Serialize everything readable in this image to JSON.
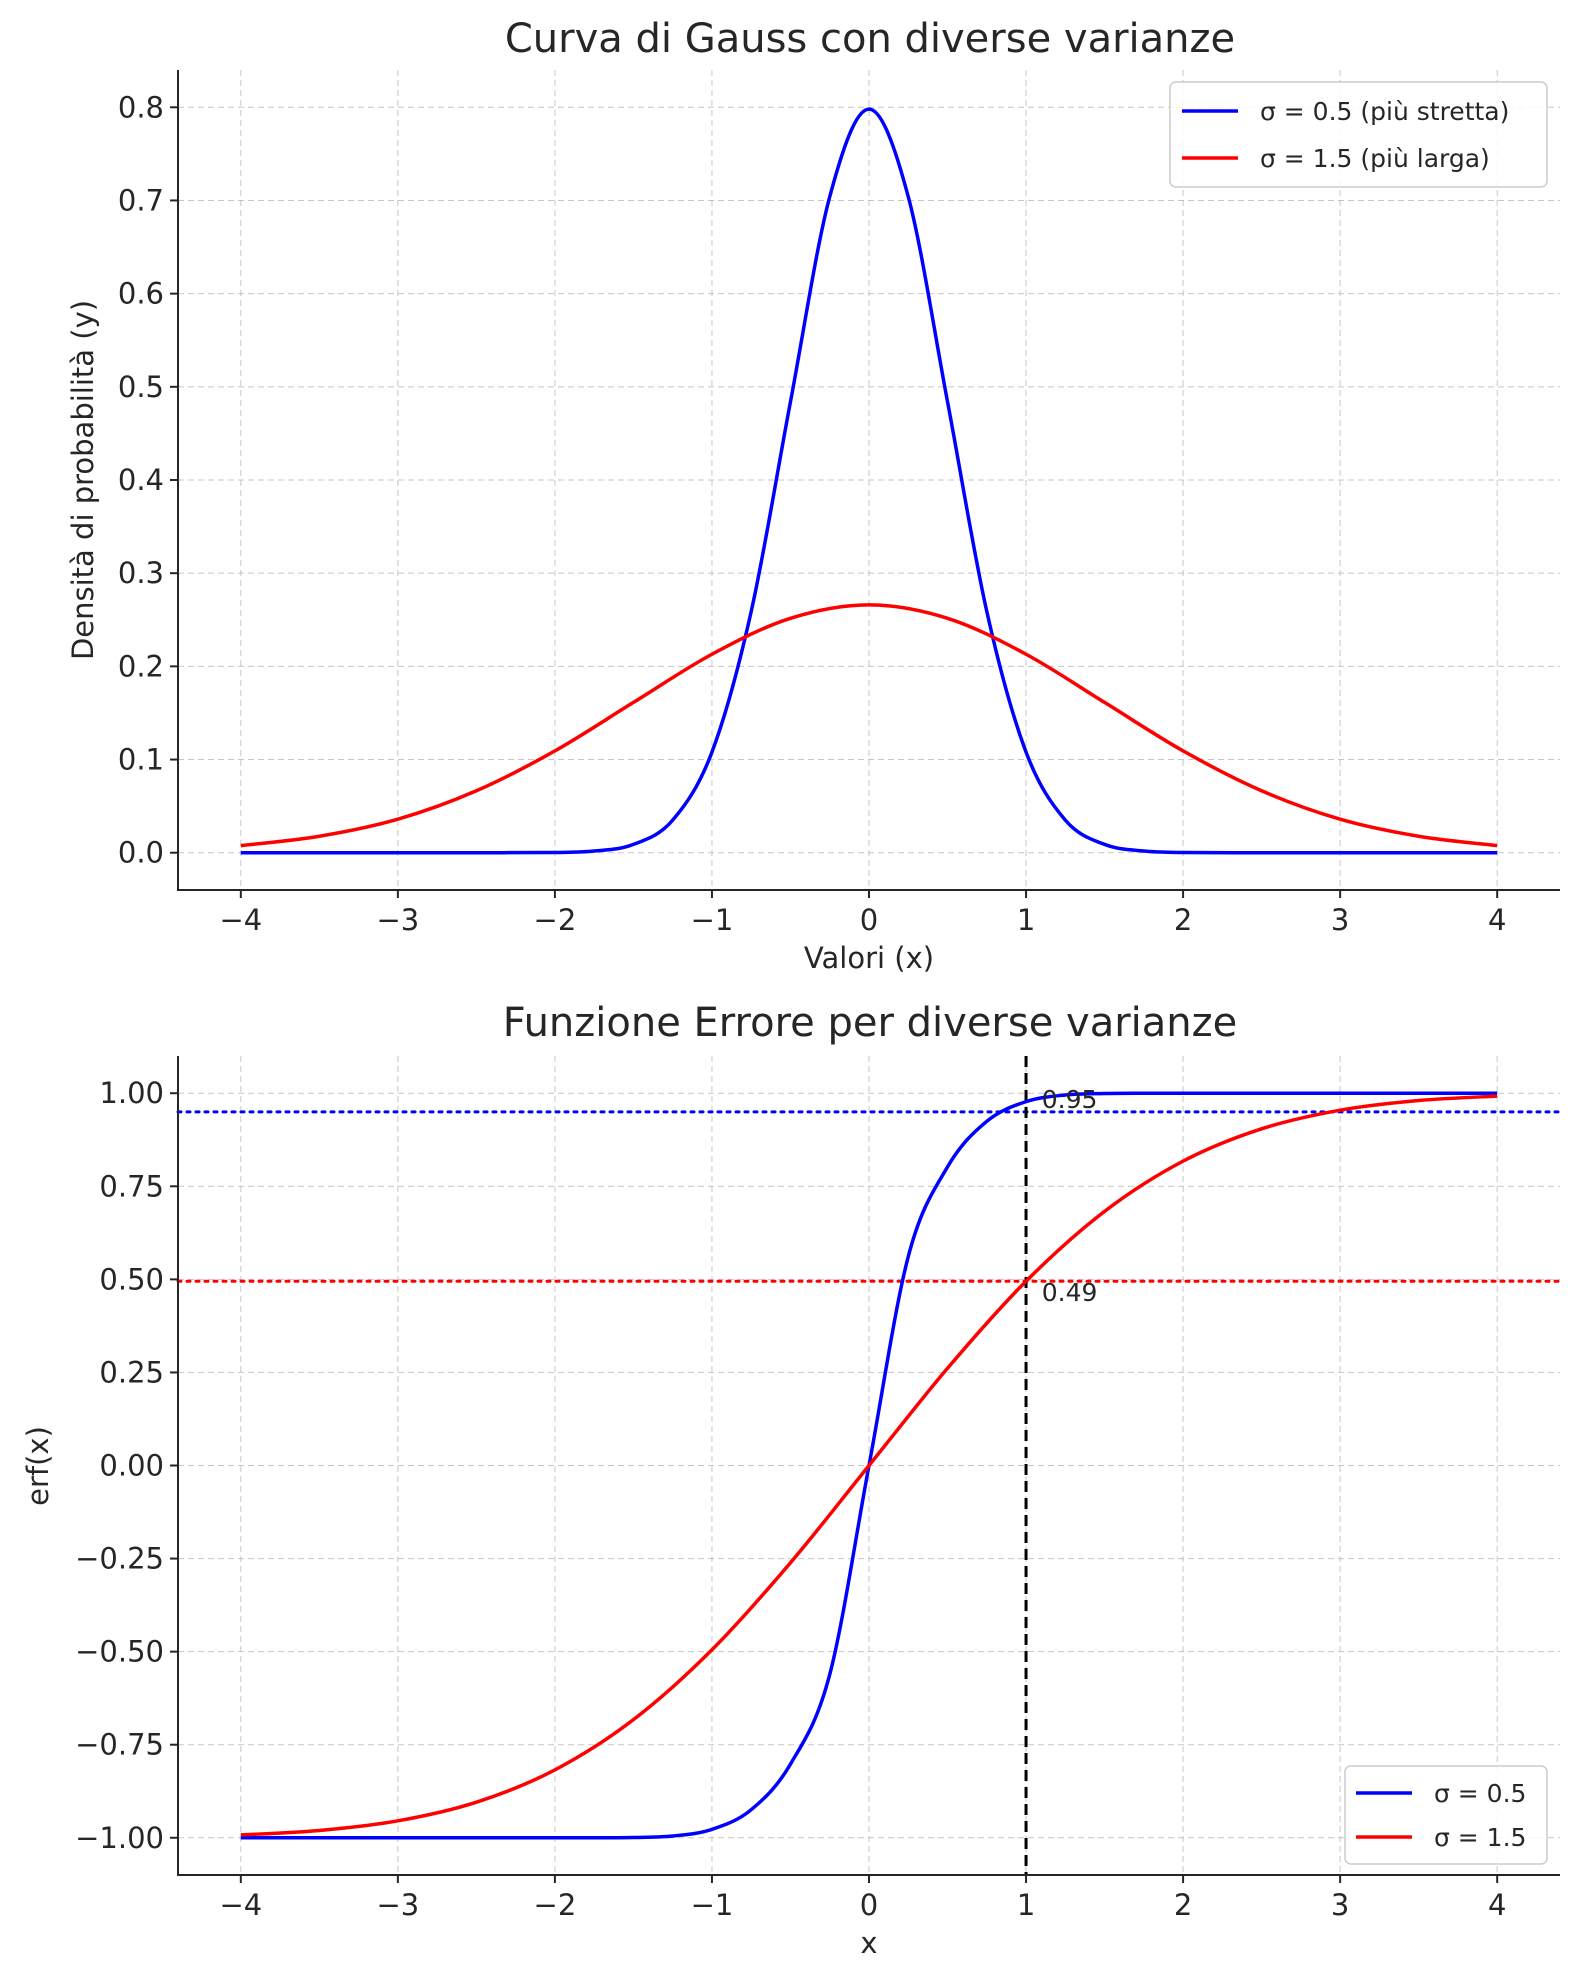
{
  "chart_data": [
    {
      "type": "line",
      "title": "Curva di Gauss con diverse varianze",
      "xlabel": "Valori (x)",
      "ylabel": "Densità di probabilità (y)",
      "xlim": [
        -4.4,
        4.4
      ],
      "ylim": [
        -0.04,
        0.84
      ],
      "xticks": [
        -4,
        -3,
        -2,
        -1,
        0,
        1,
        2,
        3,
        4
      ],
      "xtick_labels": [
        "−4",
        "−3",
        "−2",
        "−1",
        "0",
        "1",
        "2",
        "3",
        "4"
      ],
      "yticks": [
        0.0,
        0.1,
        0.2,
        0.3,
        0.4,
        0.5,
        0.6,
        0.7,
        0.8
      ],
      "ytick_labels": [
        "0.0",
        "0.1",
        "0.2",
        "0.3",
        "0.4",
        "0.5",
        "0.6",
        "0.7",
        "0.8"
      ],
      "grid": true,
      "legend_position": "top-right",
      "series": [
        {
          "name": "σ = 0.5 (più stretta)",
          "color": "#0000ff",
          "x": [
            -4,
            -3.5,
            -3,
            -2.5,
            -2,
            -1.75,
            -1.5,
            -1.25,
            -1,
            -0.75,
            -0.5,
            -0.25,
            0,
            0.25,
            0.5,
            0.75,
            1,
            1.25,
            1.5,
            1.75,
            2,
            2.5,
            3,
            3.5,
            4
          ],
          "y": [
            0.0,
            0.0,
            0.0,
            0.0,
            0.0003,
            0.0018,
            0.0089,
            0.035,
            0.108,
            0.259,
            0.484,
            0.704,
            0.798,
            0.704,
            0.484,
            0.259,
            0.108,
            0.035,
            0.0089,
            0.0018,
            0.0003,
            0.0,
            0.0,
            0.0,
            0.0
          ]
        },
        {
          "name": "σ = 1.5 (più larga)",
          "color": "#ff0000",
          "x": [
            -4,
            -3.5,
            -3,
            -2.5,
            -2,
            -1.5,
            -1,
            -0.5,
            0,
            0.5,
            1,
            1.5,
            2,
            2.5,
            3,
            3.5,
            4
          ],
          "y": [
            0.0076,
            0.0177,
            0.036,
            0.0665,
            0.1093,
            0.1613,
            0.213,
            0.2516,
            0.266,
            0.2516,
            0.213,
            0.1613,
            0.1093,
            0.0665,
            0.036,
            0.0177,
            0.0076
          ]
        }
      ]
    },
    {
      "type": "line",
      "title": "Funzione Errore per diverse varianze",
      "xlabel": "x",
      "ylabel": "erf(x)",
      "xlim": [
        -4.4,
        4.4
      ],
      "ylim": [
        -1.1,
        1.1
      ],
      "xticks": [
        -4,
        -3,
        -2,
        -1,
        0,
        1,
        2,
        3,
        4
      ],
      "xtick_labels": [
        "−4",
        "−3",
        "−2",
        "−1",
        "0",
        "1",
        "2",
        "3",
        "4"
      ],
      "yticks": [
        -1.0,
        -0.75,
        -0.5,
        -0.25,
        0.0,
        0.25,
        0.5,
        0.75,
        1.0
      ],
      "ytick_labels": [
        "−1.00",
        "−0.75",
        "−0.50",
        "−0.25",
        "0.00",
        "0.25",
        "0.50",
        "0.75",
        "1.00"
      ],
      "grid": true,
      "legend_position": "bottom-right",
      "series": [
        {
          "name": "σ = 0.5",
          "color": "#0000ff",
          "x": [
            -4,
            -3.5,
            -3,
            -2.5,
            -2,
            -1.75,
            -1.5,
            -1.25,
            -1,
            -0.75,
            -0.5,
            -0.25,
            0,
            0.25,
            0.5,
            0.75,
            1,
            1.25,
            1.5,
            1.75,
            2,
            2.5,
            3,
            3.5,
            4
          ],
          "y": [
            -1.0,
            -1.0,
            -1.0,
            -1.0,
            -1.0,
            -1.0,
            -0.9993,
            -0.9953,
            -0.9774,
            -0.9246,
            -0.8021,
            -0.5614,
            0.0,
            0.5614,
            0.8021,
            0.9246,
            0.9774,
            0.9953,
            0.9993,
            1.0,
            1.0,
            1.0,
            1.0,
            1.0,
            1.0
          ]
        },
        {
          "name": "σ = 1.5",
          "color": "#ff0000",
          "x": [
            -4,
            -3.5,
            -3,
            -2.5,
            -2,
            -1.5,
            -1,
            -0.5,
            0,
            0.5,
            1,
            1.5,
            2,
            2.5,
            3,
            3.5,
            4
          ],
          "y": [
            -0.9923,
            -0.9804,
            -0.9545,
            -0.9044,
            -0.8176,
            -0.6827,
            -0.495,
            -0.2611,
            0.0,
            0.2611,
            0.495,
            0.6827,
            0.8176,
            0.9044,
            0.9545,
            0.9804,
            0.9923
          ]
        }
      ],
      "reference_lines": {
        "vertical": {
          "x": 1,
          "color": "#000000",
          "style": "dashed"
        },
        "horizontal": [
          {
            "y": 0.95,
            "color": "#0000ff",
            "style": "dotted"
          },
          {
            "y": 0.495,
            "color": "#ff0000",
            "style": "dotted"
          }
        ]
      },
      "annotations": [
        {
          "text": "0.95",
          "x": 1.1,
          "y": 0.95,
          "color": "#0000ff"
        },
        {
          "text": "0.49",
          "x": 1.1,
          "y": 0.495,
          "color": "#ff0000"
        }
      ]
    }
  ]
}
